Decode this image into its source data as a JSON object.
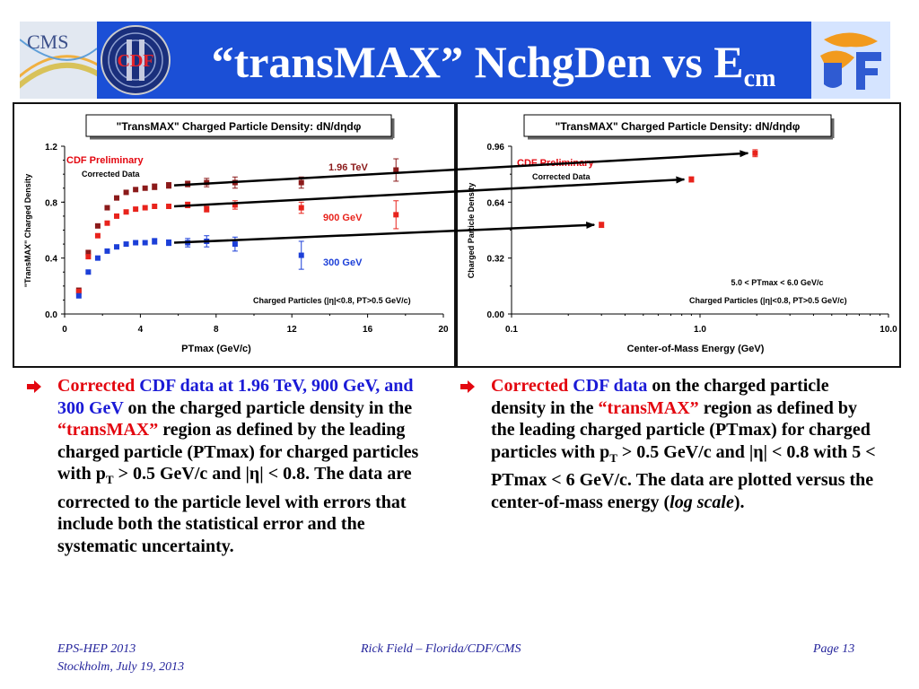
{
  "slide": {
    "title_main": "“transMAX” NchgDen vs E",
    "title_sub": "cm"
  },
  "logos": {
    "cms": "CMS",
    "cdf": "CDF"
  },
  "bullet_left": {
    "p1_red": "Corrected",
    "p1_blue": "CDF data at 1.96 TeV, 900 GeV, and 300 GeV",
    "p2": " on the charged particle density in the ",
    "p3_red": "“transMAX”",
    "p4": " region as defined by the leading charged particle (PTmax) for charged particles with p",
    "p4_sub": "T",
    "p5": " > 0.5 GeV/c and |η| < 0.8. The data are corrected to the particle level with errors that include both the statistical error and the systematic uncertainty."
  },
  "bullet_right": {
    "p1_red": "Corrected",
    "p1_blue": "CDF data",
    "p2": " on the charged particle density in the ",
    "p3_red": "“transMAX”",
    "p4": " region as defined by the leading charged particle (PTmax) for charged particles with p",
    "p4_sub": "T",
    "p5": " > 0.5 GeV/c and |η| < 0.8 with 5 < PTmax < 6 GeV/c. The data are plotted versus the center-of-mass energy (",
    "p6_italic": "log scale",
    "p7": ")."
  },
  "footer": {
    "left1": "EPS-HEP 2013",
    "left2": "Stockholm, July 19, 2013",
    "center": "Rick Field – Florida/CDF/CMS",
    "right": "Page 13"
  },
  "colors": {
    "title_bar": "#1b4fd6",
    "red": "#e3060f",
    "blue": "#1a1ad6",
    "dark_red": "#8b1a1a",
    "series_red": "#e8231c",
    "series_blue": "#1c3fd8"
  },
  "chart_data": [
    {
      "type": "scatter",
      "title": "\"TransMAX\" Charged Particle Density: dN/dηdφ",
      "xlabel": "PTmax  (GeV/c)",
      "ylabel": "\"TransMAX\" Charged Density",
      "xlim": [
        0,
        20
      ],
      "ylim": [
        0,
        1.2
      ],
      "xticks": [
        "0",
        "4",
        "8",
        "12",
        "16",
        "20"
      ],
      "yticks": [
        "0.0",
        "0.4",
        "0.8",
        "1.2"
      ],
      "annotations": [
        "CDF Preliminary",
        "Corrected Data",
        "Charged Particles (|η|<0.8, PT>0.5 GeV/c)"
      ],
      "series": [
        {
          "name": "1.96 TeV",
          "color": "#8b1a1a",
          "points": [
            [
              0.75,
              0.17
            ],
            [
              1.25,
              0.44
            ],
            [
              1.75,
              0.63
            ],
            [
              2.25,
              0.76
            ],
            [
              2.75,
              0.83
            ],
            [
              3.25,
              0.87
            ],
            [
              3.75,
              0.89
            ],
            [
              4.25,
              0.9
            ],
            [
              4.75,
              0.91
            ],
            [
              5.5,
              0.92
            ],
            [
              6.5,
              0.93
            ],
            [
              7.5,
              0.94
            ],
            [
              9,
              0.94
            ],
            [
              12.5,
              0.94
            ],
            [
              17.5,
              1.03
            ]
          ],
          "err": [
            0.01,
            0.01,
            0.01,
            0.01,
            0.01,
            0.01,
            0.01,
            0.01,
            0.02,
            0.02,
            0.02,
            0.03,
            0.04,
            0.04,
            0.08
          ]
        },
        {
          "name": "900 GeV",
          "color": "#e8231c",
          "points": [
            [
              0.75,
              0.16
            ],
            [
              1.25,
              0.41
            ],
            [
              1.75,
              0.56
            ],
            [
              2.25,
              0.65
            ],
            [
              2.75,
              0.7
            ],
            [
              3.25,
              0.73
            ],
            [
              3.75,
              0.75
            ],
            [
              4.25,
              0.76
            ],
            [
              4.75,
              0.77
            ],
            [
              5.5,
              0.77
            ],
            [
              6.5,
              0.78
            ],
            [
              7.5,
              0.75
            ],
            [
              9,
              0.78
            ],
            [
              12.5,
              0.76
            ],
            [
              17.5,
              0.71
            ]
          ],
          "err": [
            0.01,
            0.01,
            0.01,
            0.01,
            0.01,
            0.01,
            0.01,
            0.01,
            0.01,
            0.01,
            0.02,
            0.02,
            0.03,
            0.04,
            0.1
          ]
        },
        {
          "name": "300 GeV",
          "color": "#1c3fd8",
          "points": [
            [
              0.75,
              0.13
            ],
            [
              1.25,
              0.3
            ],
            [
              1.75,
              0.4
            ],
            [
              2.25,
              0.45
            ],
            [
              2.75,
              0.48
            ],
            [
              3.25,
              0.5
            ],
            [
              3.75,
              0.51
            ],
            [
              4.25,
              0.51
            ],
            [
              4.75,
              0.52
            ],
            [
              5.5,
              0.51
            ],
            [
              6.5,
              0.51
            ],
            [
              7.5,
              0.52
            ],
            [
              9,
              0.5
            ],
            [
              12.5,
              0.42
            ]
          ],
          "err": [
            0.01,
            0.01,
            0.01,
            0.01,
            0.01,
            0.01,
            0.01,
            0.01,
            0.02,
            0.02,
            0.03,
            0.04,
            0.05,
            0.1
          ]
        }
      ]
    },
    {
      "type": "scatter",
      "title": "\"TransMAX\" Charged Particle Density: dN/dηdφ",
      "xlabel": "Center-of-Mass Energy  (GeV)",
      "ylabel": "Charged Particle Density",
      "xscale": "log",
      "xlim": [
        0.1,
        10
      ],
      "ylim": [
        0,
        0.96
      ],
      "xticks": [
        "0.1",
        "1.0",
        "10.0"
      ],
      "yticks": [
        "0.00",
        "0.32",
        "0.64",
        "0.96"
      ],
      "annotations": [
        "CDF Preliminary",
        "Corrected Data",
        "5.0 < PTmax < 6.0 GeV/c",
        "Charged Particles (|η|<0.8, PT>0.5 GeV/c)"
      ],
      "points": [
        [
          0.3,
          0.51
        ],
        [
          0.9,
          0.77
        ],
        [
          1.96,
          0.92
        ]
      ],
      "err": [
        0.015,
        0.015,
        0.02
      ],
      "color": "#e8231c"
    }
  ]
}
